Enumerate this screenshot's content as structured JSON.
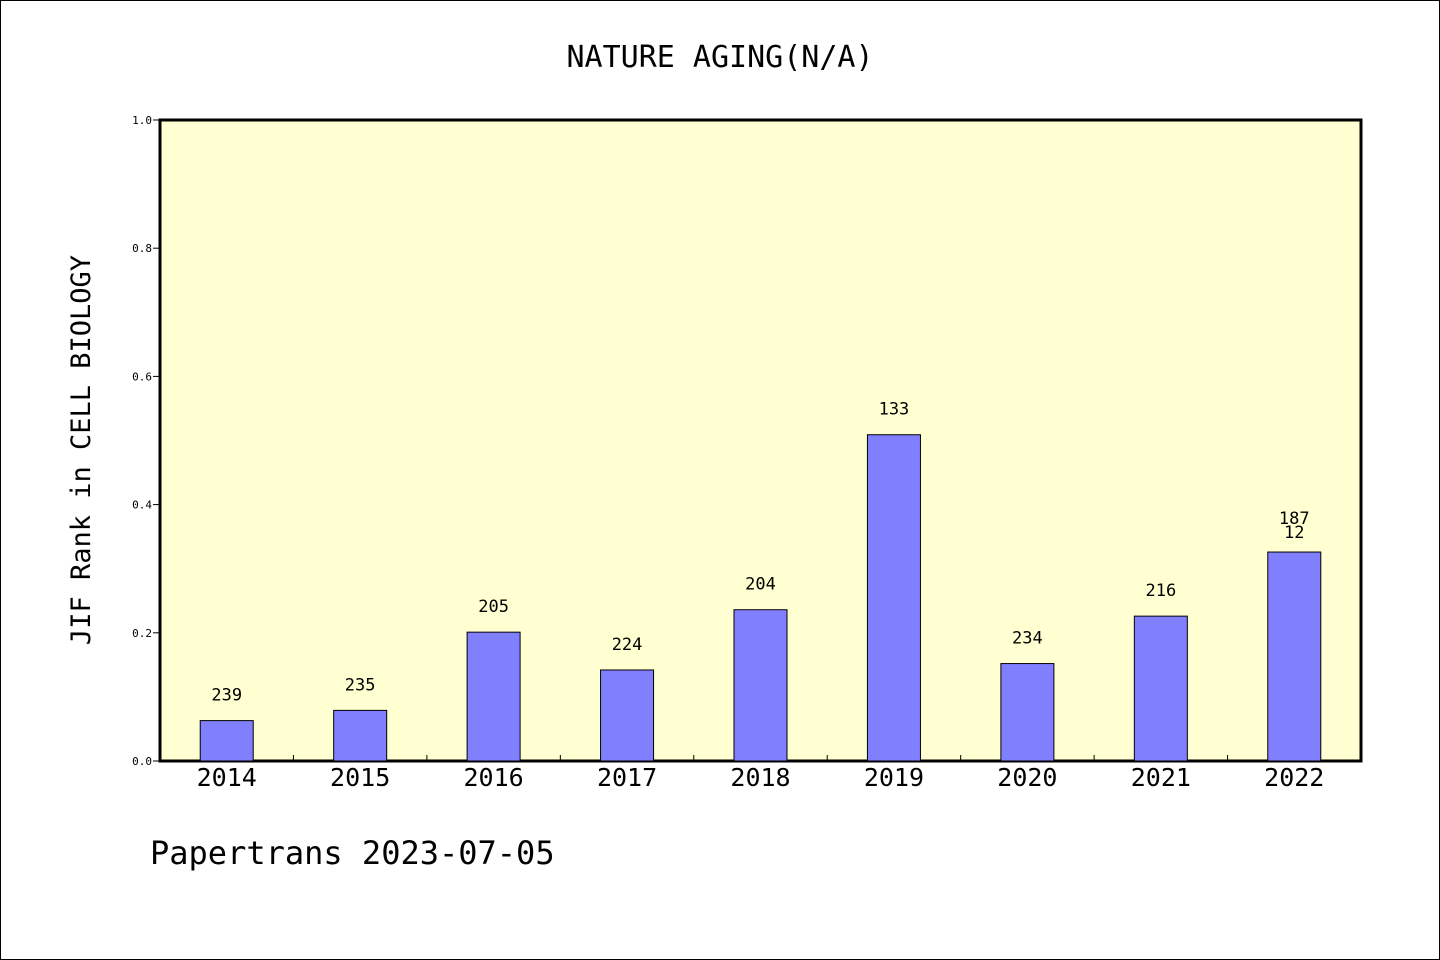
{
  "chart_data": {
    "type": "bar",
    "title": "NATURE AGING(N/A)",
    "ylabel": "JIF Rank in CELL BIOLOGY",
    "xlabel": "",
    "ylim": [
      0,
      1.0
    ],
    "yticks": [
      "0.0",
      "0.2",
      "0.4",
      "0.6",
      "0.8",
      "1.0"
    ],
    "grid": false,
    "categories": [
      "2014",
      "2015",
      "2016",
      "2017",
      "2018",
      "2019",
      "2020",
      "2021",
      "2022"
    ],
    "values": [
      0.063,
      0.079,
      0.201,
      0.142,
      0.236,
      0.509,
      0.152,
      0.226,
      0.326
    ],
    "bar_labels": [
      [
        "239"
      ],
      [
        "235"
      ],
      [
        "205"
      ],
      [
        "224"
      ],
      [
        "204"
      ],
      [
        "133"
      ],
      [
        "234"
      ],
      [
        "216"
      ],
      [
        "187",
        "12"
      ]
    ],
    "footer": "Papertrans 2023-07-05",
    "colors": {
      "plot_bg": "#ffffd1",
      "bar": "#8080ff",
      "axis": "#000000"
    }
  }
}
